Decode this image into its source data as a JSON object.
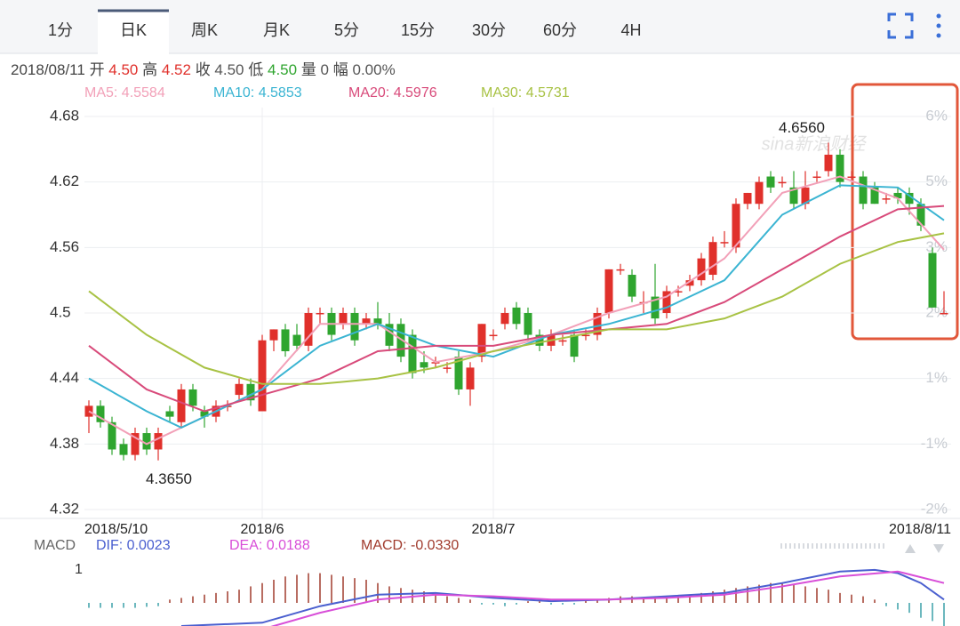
{
  "tabs": [
    "1分",
    "日K",
    "周K",
    "月K",
    "5分",
    "15分",
    "30分",
    "60分",
    "4H"
  ],
  "active_tab": 1,
  "quote": {
    "date": "2018/08/11",
    "items": [
      {
        "label": "开",
        "value": "4.50",
        "color": "#e0302b"
      },
      {
        "label": "高",
        "value": "4.52",
        "color": "#e0302b"
      },
      {
        "label": "收",
        "value": "4.50",
        "color": "#555555"
      },
      {
        "label": "低",
        "value": "4.50",
        "color": "#2fa52f"
      },
      {
        "label": "量",
        "value": "0",
        "color": "#555555"
      },
      {
        "label": "幅",
        "value": "0.00%",
        "color": "#555555"
      }
    ]
  },
  "watermark": "sina新浪财经",
  "chart_data": [
    {
      "type": "candlestick",
      "categories": [
        "2018/5/10",
        null,
        null,
        null,
        null,
        null,
        null,
        null,
        null,
        null,
        null,
        null,
        null,
        null,
        null,
        "2018/6",
        null,
        null,
        null,
        null,
        null,
        null,
        null,
        null,
        null,
        null,
        null,
        null,
        null,
        null,
        null,
        null,
        null,
        null,
        null,
        "2018/7",
        null,
        null,
        null,
        null,
        null,
        null,
        null,
        null,
        null,
        null,
        null,
        null,
        null,
        null,
        null,
        null,
        null,
        null,
        null,
        null,
        null,
        null,
        null,
        null,
        null,
        null,
        null,
        null,
        null,
        null,
        null,
        null,
        null,
        null,
        null,
        null,
        null,
        null,
        "2018/8/11"
      ],
      "open": [
        4.405,
        4.415,
        4.4,
        4.38,
        4.37,
        4.39,
        4.375,
        4.41,
        4.4,
        4.43,
        4.41,
        4.405,
        4.415,
        4.425,
        4.435,
        4.41,
        4.475,
        4.485,
        4.48,
        4.47,
        4.5,
        4.5,
        4.49,
        4.5,
        4.49,
        4.495,
        4.49,
        4.49,
        4.48,
        4.455,
        4.455,
        4.45,
        4.46,
        4.43,
        4.46,
        4.48,
        4.49,
        4.505,
        4.5,
        4.48,
        4.47,
        4.475,
        4.48,
        4.48,
        4.48,
        4.5,
        4.54,
        4.535,
        4.51,
        4.515,
        4.5,
        4.52,
        4.525,
        4.53,
        4.535,
        4.565,
        4.56,
        4.6,
        4.6,
        4.625,
        4.62,
        4.615,
        4.6,
        4.625,
        4.63,
        4.645,
        4.625,
        4.625,
        4.615,
        4.605,
        4.61,
        4.61,
        4.6,
        4.555,
        4.5
      ],
      "high": [
        4.42,
        4.42,
        4.405,
        4.385,
        4.395,
        4.395,
        4.395,
        4.415,
        4.435,
        4.435,
        4.415,
        4.42,
        4.42,
        4.44,
        4.44,
        4.48,
        4.485,
        4.49,
        4.49,
        4.505,
        4.505,
        4.505,
        4.505,
        4.505,
        4.5,
        4.51,
        4.5,
        4.495,
        4.485,
        4.465,
        4.46,
        4.455,
        4.465,
        4.455,
        4.49,
        4.485,
        4.505,
        4.51,
        4.505,
        4.485,
        4.485,
        4.48,
        4.485,
        4.485,
        4.505,
        4.54,
        4.545,
        4.54,
        4.52,
        4.545,
        4.525,
        4.525,
        4.535,
        4.555,
        4.57,
        4.575,
        4.605,
        4.61,
        4.625,
        4.63,
        4.625,
        4.63,
        4.63,
        4.63,
        4.656,
        4.65,
        4.63,
        4.63,
        4.62,
        4.61,
        4.615,
        4.615,
        4.605,
        4.56,
        4.52
      ],
      "low": [
        4.39,
        4.395,
        4.37,
        4.365,
        4.365,
        4.37,
        4.365,
        4.4,
        4.395,
        4.41,
        4.395,
        4.4,
        4.41,
        4.42,
        4.415,
        4.41,
        4.465,
        4.46,
        4.465,
        4.465,
        4.49,
        4.475,
        4.485,
        4.47,
        4.485,
        4.485,
        4.465,
        4.455,
        4.44,
        4.445,
        4.45,
        4.445,
        4.425,
        4.415,
        4.455,
        4.475,
        4.485,
        4.485,
        4.475,
        4.465,
        4.465,
        4.47,
        4.455,
        4.475,
        4.475,
        4.495,
        4.535,
        4.51,
        4.5,
        4.49,
        4.495,
        4.515,
        4.52,
        4.525,
        4.53,
        4.56,
        4.555,
        4.595,
        4.595,
        4.61,
        4.615,
        4.595,
        4.595,
        4.62,
        4.625,
        4.615,
        4.62,
        4.595,
        4.6,
        4.6,
        4.6,
        4.59,
        4.575,
        4.505,
        4.5
      ],
      "close": [
        4.415,
        4.4,
        4.375,
        4.37,
        4.39,
        4.375,
        4.39,
        4.405,
        4.43,
        4.415,
        4.405,
        4.415,
        4.415,
        4.435,
        4.42,
        4.475,
        4.485,
        4.465,
        4.47,
        4.5,
        4.5,
        4.48,
        4.5,
        4.475,
        4.495,
        4.49,
        4.47,
        4.46,
        4.445,
        4.45,
        4.455,
        4.45,
        4.43,
        4.45,
        4.49,
        4.48,
        4.5,
        4.49,
        4.48,
        4.47,
        4.48,
        4.475,
        4.46,
        4.48,
        4.5,
        4.54,
        4.54,
        4.515,
        4.51,
        4.495,
        4.52,
        4.52,
        4.53,
        4.55,
        4.565,
        4.565,
        4.6,
        4.61,
        4.62,
        4.615,
        4.62,
        4.6,
        4.615,
        4.625,
        4.645,
        4.62,
        4.625,
        4.6,
        4.6,
        4.605,
        4.605,
        4.6,
        4.58,
        4.505,
        4.5
      ],
      "up_color": "#e0302b",
      "down_color": "#2fa52f",
      "series": [
        {
          "name": "MA5",
          "legend": "MA5: 4.5584",
          "color": "#f2a0b8",
          "x": [
            0,
            5,
            10,
            15,
            20,
            25,
            30,
            35,
            40,
            45,
            50,
            55,
            60,
            65,
            70,
            74
          ],
          "values": [
            4.41,
            4.38,
            4.405,
            4.43,
            4.49,
            4.49,
            4.455,
            4.465,
            4.48,
            4.5,
            4.515,
            4.55,
            4.61,
            4.625,
            4.605,
            4.558
          ]
        },
        {
          "name": "MA10",
          "legend": "MA10: 4.5853",
          "color": "#3ab4d2",
          "x": [
            0,
            5,
            8,
            15,
            20,
            25,
            30,
            35,
            40,
            45,
            50,
            55,
            60,
            65,
            70,
            74
          ],
          "values": [
            4.44,
            4.41,
            4.395,
            4.43,
            4.47,
            4.49,
            4.47,
            4.46,
            4.48,
            4.49,
            4.505,
            4.53,
            4.59,
            4.617,
            4.615,
            4.585
          ]
        },
        {
          "name": "MA20",
          "legend": "MA20: 4.5976",
          "color": "#d84a7a",
          "x": [
            0,
            5,
            10,
            15,
            20,
            25,
            30,
            35,
            40,
            45,
            50,
            55,
            60,
            65,
            70,
            74
          ],
          "values": [
            4.47,
            4.43,
            4.41,
            4.425,
            4.44,
            4.465,
            4.47,
            4.47,
            4.48,
            4.485,
            4.49,
            4.51,
            4.54,
            4.57,
            4.595,
            4.598
          ]
        },
        {
          "name": "MA30",
          "legend": "MA30: 4.5731",
          "color": "#a8c244",
          "x": [
            0,
            5,
            10,
            15,
            20,
            25,
            30,
            35,
            40,
            45,
            50,
            55,
            60,
            65,
            70,
            74
          ],
          "values": [
            4.52,
            4.48,
            4.45,
            4.435,
            4.435,
            4.44,
            4.45,
            4.465,
            4.475,
            4.485,
            4.485,
            4.495,
            4.515,
            4.545,
            4.565,
            4.573
          ]
        }
      ],
      "ylim": [
        4.32,
        4.68
      ],
      "yticks": [
        4.32,
        4.38,
        4.44,
        4.5,
        4.56,
        4.62,
        4.68
      ],
      "y2_labels": [
        "-2%",
        "-1%",
        "1%",
        "2%",
        "3%",
        "5%",
        "6%"
      ],
      "grid": true,
      "annotations": [
        {
          "label": "4.6560",
          "value": 4.656,
          "x": 64
        },
        {
          "label": "4.3650",
          "value": 4.365,
          "x": 6
        }
      ]
    },
    {
      "type": "macd",
      "title": "MACD",
      "series": [
        {
          "name": "DIF",
          "legend": "DIF: 0.0023",
          "color": "#4a5fcf",
          "x": [
            8,
            15,
            20,
            25,
            30,
            35,
            40,
            45,
            50,
            55,
            60,
            65,
            68,
            70,
            72,
            74
          ],
          "values": [
            -0.7,
            -0.6,
            -0.1,
            0.25,
            0.3,
            0.15,
            0.05,
            0.1,
            0.2,
            0.3,
            0.6,
            0.95,
            1.0,
            0.9,
            0.6,
            0.1
          ]
        },
        {
          "name": "DEA",
          "legend": "DEA: 0.0188",
          "color": "#d84ed8",
          "x": [
            12,
            15,
            20,
            25,
            30,
            35,
            40,
            45,
            50,
            55,
            60,
            65,
            70,
            74
          ],
          "values": [
            -0.75,
            -0.8,
            -0.3,
            0.1,
            0.25,
            0.2,
            0.1,
            0.1,
            0.15,
            0.25,
            0.5,
            0.8,
            0.95,
            0.6
          ]
        }
      ],
      "histogram_legend": "MACD: -0.0330",
      "histogram_legend_color": "#a03a2c",
      "histogram": [
        -0.15,
        -0.15,
        -0.15,
        -0.15,
        -0.15,
        -0.12,
        -0.1,
        0.1,
        0.15,
        0.2,
        0.25,
        0.3,
        0.35,
        0.4,
        0.5,
        0.6,
        0.7,
        0.8,
        0.85,
        0.9,
        0.9,
        0.85,
        0.8,
        0.75,
        0.7,
        0.6,
        0.5,
        0.45,
        0.4,
        0.35,
        0.3,
        0.2,
        0.15,
        0.1,
        -0.05,
        -0.05,
        -0.1,
        -0.05,
        0.05,
        0.05,
        -0.05,
        -0.05,
        -0.05,
        0.1,
        0.1,
        0.15,
        0.2,
        0.2,
        0.15,
        0.15,
        0.2,
        0.2,
        0.25,
        0.3,
        0.35,
        0.4,
        0.45,
        0.5,
        0.55,
        0.6,
        0.6,
        0.55,
        0.5,
        0.45,
        0.4,
        0.3,
        0.25,
        0.2,
        0.1,
        -0.1,
        -0.2,
        -0.3,
        -0.45,
        -0.55,
        -0.7
      ],
      "up_color": "#a03a2c",
      "down_color": "#3aa0a8",
      "ylim": [
        -0.7,
        2.1
      ],
      "yticks": [
        1
      ]
    }
  ]
}
